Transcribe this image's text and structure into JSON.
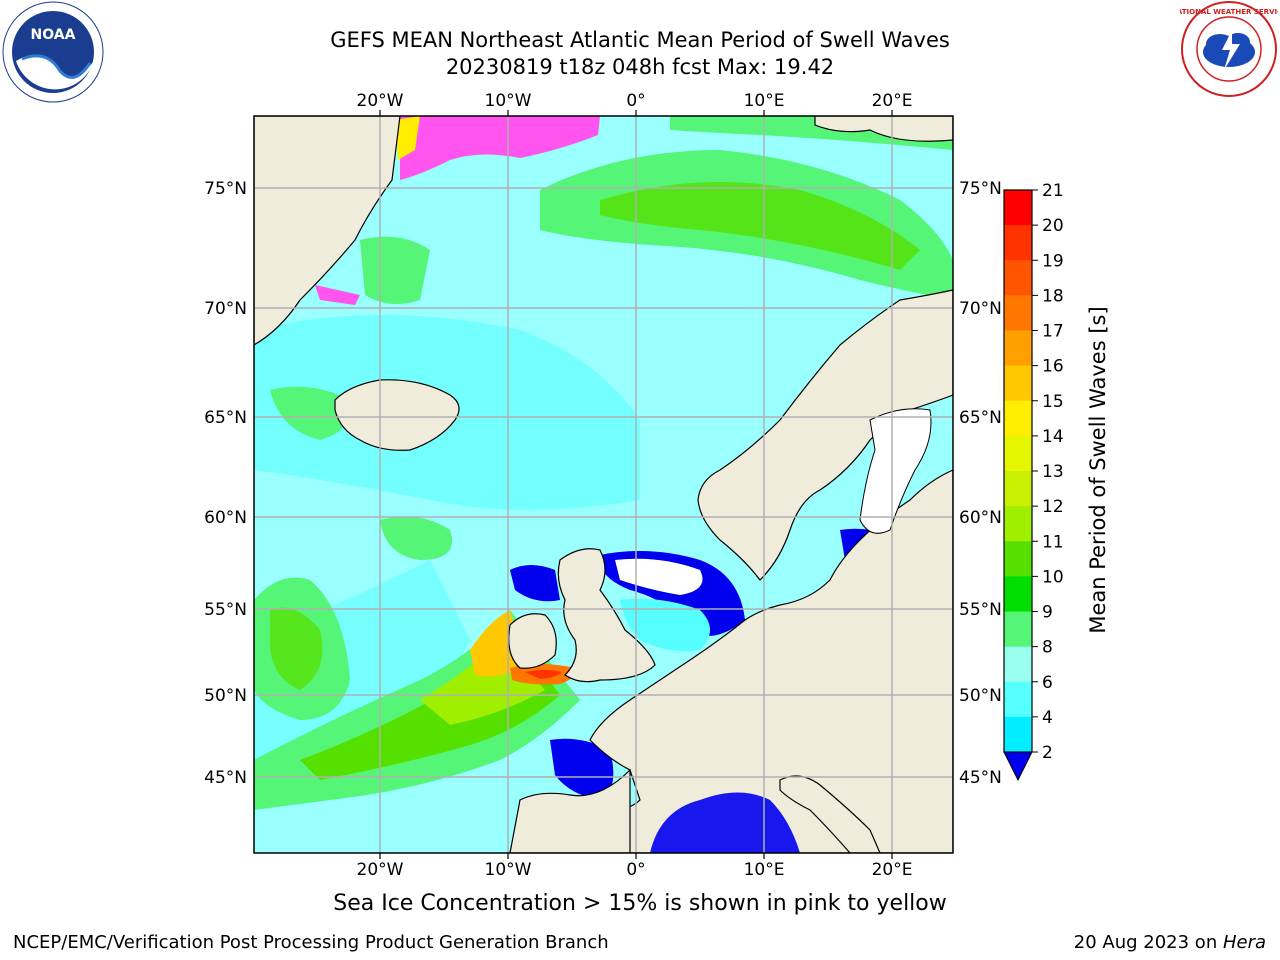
{
  "title_line1": "GEFS MEAN Northeast Atlantic Mean Period of Swell Waves",
  "title_line2": "20230819 t18z 048h fcst   Max: 19.42",
  "axis": {
    "top_lon_labels": [
      "20°W",
      "10°W",
      "0°",
      "10°E",
      "20°E"
    ],
    "bottom_lon_labels": [
      "20°W",
      "10°W",
      "0°",
      "10°E",
      "20°E"
    ],
    "left_lat_labels": [
      "75°N",
      "70°N",
      "65°N",
      "60°N",
      "55°N",
      "50°N",
      "45°N"
    ],
    "right_lat_labels": [
      "75°N",
      "70°N",
      "65°N",
      "60°N",
      "55°N",
      "50°N",
      "45°N"
    ]
  },
  "colorbar": {
    "label": "Mean Period of Swell Waves [s]",
    "ticks": [
      "21",
      "20",
      "19",
      "18",
      "17",
      "16",
      "15",
      "14",
      "13",
      "12",
      "11",
      "10",
      "9",
      "8",
      "6",
      "4",
      "2"
    ],
    "colors": [
      "#ff0000",
      "#ff3300",
      "#ff5500",
      "#ff7700",
      "#ffa000",
      "#ffc800",
      "#ffee00",
      "#e6f500",
      "#c8f000",
      "#a0ee00",
      "#55e000",
      "#00dd00",
      "#55f577",
      "#99ffee",
      "#55ffff",
      "#00eeff",
      "#0080ff",
      "#0000ee"
    ]
  },
  "caption": "Sea Ice Concentration > 15% is shown in pink to yellow",
  "footer_left": "NCEP/EMC/Verification Post Processing Product Generation Branch",
  "footer_right_date": "20 Aug 2023 on ",
  "footer_right_host": "Hera",
  "logos": {
    "left": "NOAA",
    "right_text": "NATIONAL WEATHER SERVICE"
  },
  "colors": {
    "land": "#efecdc",
    "ocean_base": "#99ffff",
    "grid": "#b0b0b0"
  }
}
